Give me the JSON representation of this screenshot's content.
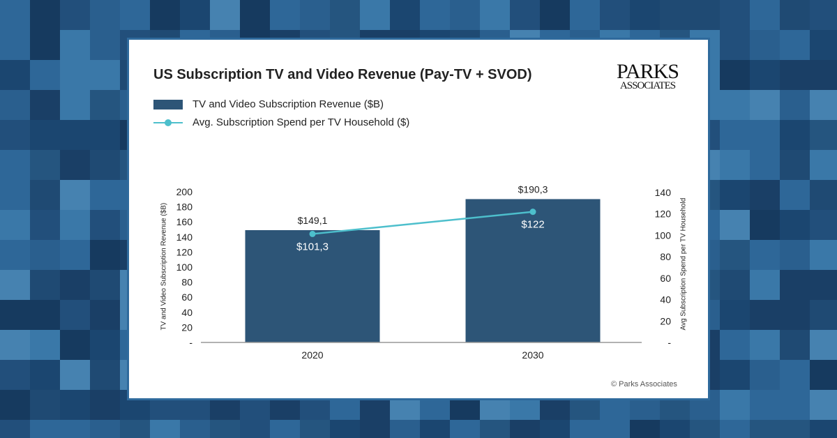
{
  "colors": {
    "bar": "#2d5577",
    "line": "#4dbfcc",
    "frame": "#2f6a9c",
    "background": "#1d4a74"
  },
  "logo": {
    "line1": "PARKS",
    "line2": "ASSOCIATES"
  },
  "copyright": "© Parks Associates",
  "chart_data": {
    "type": "bar+line",
    "title": "US Subscription TV and Video Revenue (Pay-TV + SVOD)",
    "categories": [
      "2020",
      "2030"
    ],
    "series": [
      {
        "name": "TV and Video Subscription Revenue ($B)",
        "type": "bar",
        "axis": "left",
        "values": [
          149.1,
          190.3
        ],
        "labels": [
          "$149,1",
          "$190,3"
        ]
      },
      {
        "name": "Avg. Subscription Spend per TV Household ($)",
        "type": "line",
        "axis": "right",
        "values": [
          101.3,
          122
        ],
        "labels": [
          "$101,3",
          "$122"
        ]
      }
    ],
    "ylabel_left": "TV and Video Subscription Revenue ($B)",
    "ylabel_right": "Avg Subscription Spend per TV Household",
    "ylim_left": [
      0,
      200
    ],
    "ylim_right": [
      0,
      140
    ],
    "yticks_left": [
      "-",
      "20",
      "40",
      "60",
      "80",
      "100",
      "120",
      "140",
      "160",
      "180",
      "200"
    ],
    "yticks_right": [
      "-",
      "20",
      "40",
      "60",
      "80",
      "100",
      "120",
      "140"
    ],
    "grid": false,
    "legend": "top-left"
  }
}
